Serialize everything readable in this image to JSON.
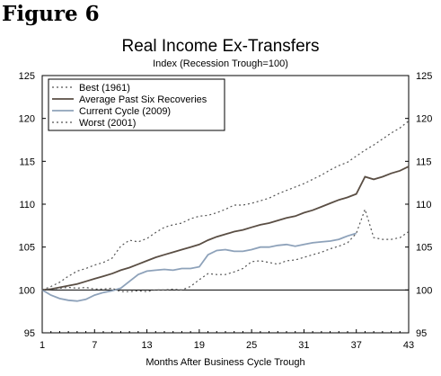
{
  "figure_label": "Figure 6",
  "chart_data": {
    "type": "line",
    "title": "Real Income Ex-Transfers",
    "subtitle": "Index (Recession Trough=100)",
    "xlabel": "Months After Business Cycle Trough",
    "ylabel": "",
    "xlim": [
      1,
      43
    ],
    "ylim": [
      95,
      125
    ],
    "x_ticks": [
      1,
      7,
      13,
      19,
      25,
      31,
      37,
      43
    ],
    "y_ticks": [
      95,
      100,
      105,
      110,
      115,
      120,
      125
    ],
    "grid": false,
    "legend_position": "top-left",
    "x": [
      1,
      2,
      3,
      4,
      5,
      6,
      7,
      8,
      9,
      10,
      11,
      12,
      13,
      14,
      15,
      16,
      17,
      18,
      19,
      20,
      21,
      22,
      23,
      24,
      25,
      26,
      27,
      28,
      29,
      30,
      31,
      32,
      33,
      34,
      35,
      36,
      37,
      38,
      39,
      40,
      41,
      42,
      43
    ],
    "series": [
      {
        "name": "Best (1961)",
        "style": "dotted",
        "color": "#555555",
        "values": [
          100.0,
          100.4,
          100.9,
          101.6,
          102.2,
          102.5,
          102.9,
          103.2,
          103.7,
          105.1,
          105.8,
          105.6,
          106.0,
          106.7,
          107.3,
          107.6,
          107.8,
          108.3,
          108.6,
          108.7,
          109.0,
          109.4,
          109.9,
          109.9,
          110.1,
          110.4,
          110.7,
          111.2,
          111.6,
          112.0,
          112.4,
          112.9,
          113.4,
          114.0,
          114.5,
          114.9,
          115.6,
          116.3,
          116.9,
          117.6,
          118.3,
          118.9,
          119.7
        ]
      },
      {
        "name": "Average Past Six Recoveries",
        "style": "solid",
        "color": "#5a4e44",
        "values": [
          100.0,
          100.1,
          100.3,
          100.5,
          100.7,
          101.0,
          101.3,
          101.6,
          101.9,
          102.3,
          102.6,
          103.0,
          103.4,
          103.8,
          104.1,
          104.4,
          104.7,
          105.0,
          105.3,
          105.8,
          106.2,
          106.5,
          106.8,
          107.0,
          107.3,
          107.6,
          107.8,
          108.1,
          108.4,
          108.6,
          109.0,
          109.3,
          109.7,
          110.1,
          110.5,
          110.8,
          111.2,
          113.2,
          112.9,
          113.2,
          113.6,
          113.9,
          114.4
        ]
      },
      {
        "name": "Current Cycle (2009)",
        "style": "solid",
        "color": "#8ea2ba",
        "values": [
          100.0,
          99.4,
          99.0,
          98.8,
          98.7,
          98.9,
          99.4,
          99.7,
          99.9,
          100.2,
          101.0,
          101.8,
          102.2,
          102.3,
          102.4,
          102.3,
          102.5,
          102.5,
          102.7,
          104.1,
          104.6,
          104.7,
          104.5,
          104.5,
          104.7,
          105.0,
          105.0,
          105.2,
          105.3,
          105.1,
          105.3,
          105.5,
          105.6,
          105.7,
          105.9,
          106.3,
          106.6,
          null,
          null,
          null,
          null,
          null,
          null
        ]
      },
      {
        "name": "Worst (2001)",
        "style": "dotted",
        "color": "#555555",
        "values": [
          100.0,
          100.1,
          100.2,
          100.3,
          100.2,
          100.3,
          100.1,
          100.1,
          100.2,
          99.8,
          99.8,
          99.9,
          99.8,
          100.0,
          100.0,
          100.1,
          100.0,
          100.4,
          101.2,
          101.9,
          101.8,
          101.8,
          102.1,
          102.5,
          103.3,
          103.4,
          103.2,
          103.0,
          103.4,
          103.5,
          103.8,
          104.1,
          104.4,
          104.8,
          105.1,
          105.5,
          106.6,
          109.4,
          106.1,
          105.9,
          105.9,
          106.1,
          106.8
        ]
      }
    ],
    "reference_line": 100
  }
}
